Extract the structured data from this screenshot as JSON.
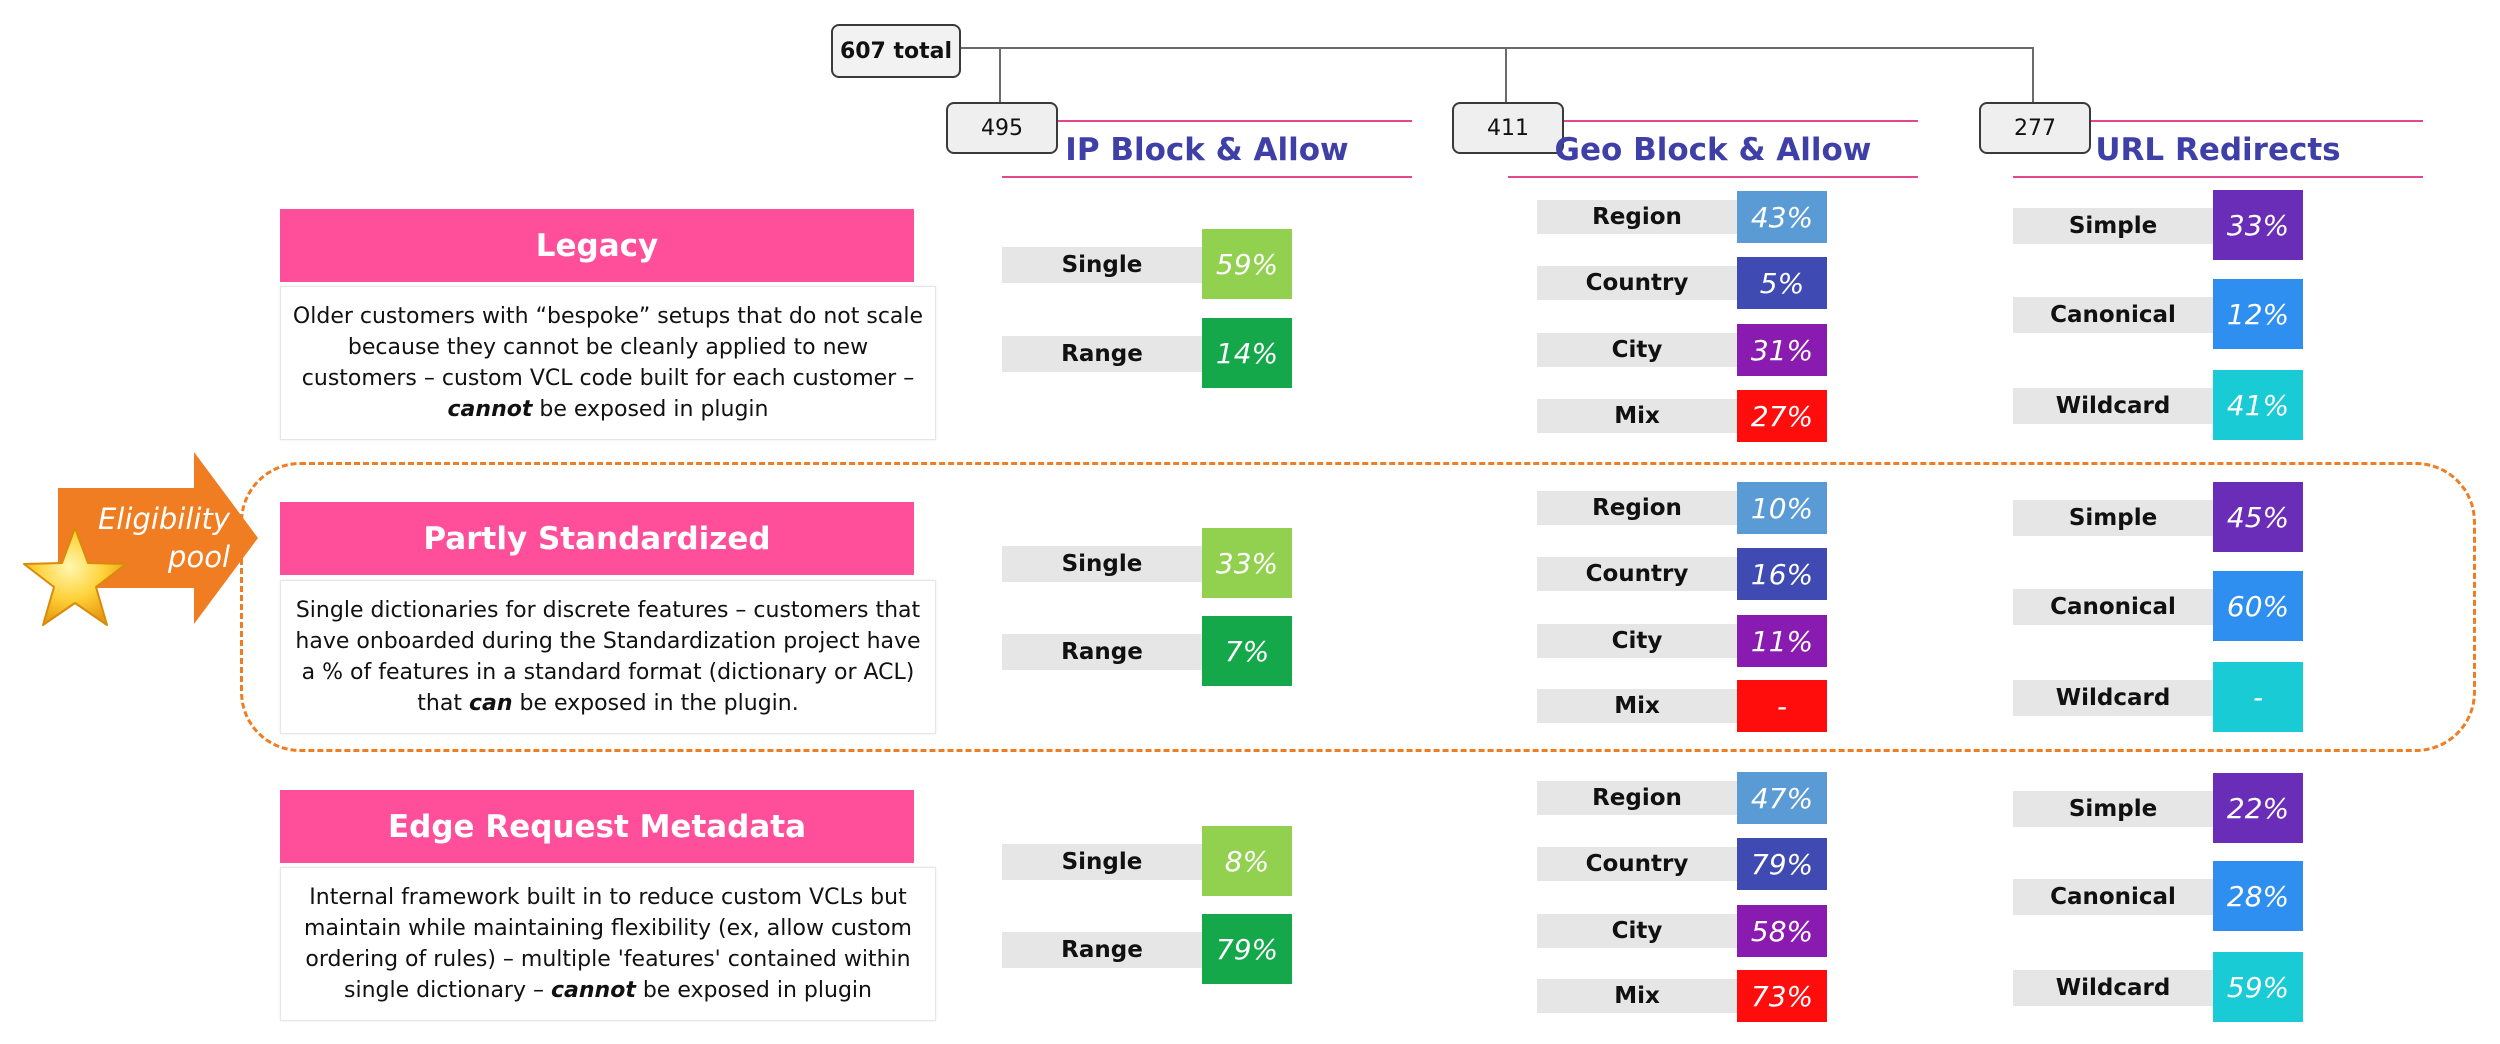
{
  "total": "607 total",
  "columns": [
    {
      "count": "495",
      "title": "IP Block & Allow"
    },
    {
      "count": "411",
      "title": "Geo Block & Allow"
    },
    {
      "count": "277",
      "title": "URL Redirects"
    }
  ],
  "eligibility": {
    "line1": "Eligibility",
    "line2": "pool"
  },
  "rows": [
    {
      "title": "Legacy",
      "desc_parts": [
        "Older customers with “bespoke” setups that do not scale because they cannot be cleanly applied to new customers – custom VCL code built for each customer – ",
        "cannot",
        " be exposed in plugin"
      ],
      "ip": [
        {
          "label": "Single",
          "value": "59%"
        },
        {
          "label": "Range",
          "value": "14%"
        }
      ],
      "geo": [
        {
          "label": "Region",
          "value": "43%"
        },
        {
          "label": "Country",
          "value": "5%"
        },
        {
          "label": "City",
          "value": "31%"
        },
        {
          "label": "Mix",
          "value": "27%"
        }
      ],
      "url": [
        {
          "label": "Simple",
          "value": "33%"
        },
        {
          "label": "Canonical",
          "value": "12%"
        },
        {
          "label": "Wildcard",
          "value": "41%"
        }
      ]
    },
    {
      "title": "Partly Standardized",
      "desc_parts": [
        "Single dictionaries for discrete features – customers that have onboarded during the Standardization project have a % of features in a standard format (dictionary or ACL) that ",
        "can",
        " be exposed in the plugin."
      ],
      "ip": [
        {
          "label": "Single",
          "value": "33%"
        },
        {
          "label": "Range",
          "value": "7%"
        }
      ],
      "geo": [
        {
          "label": "Region",
          "value": "10%"
        },
        {
          "label": "Country",
          "value": "16%"
        },
        {
          "label": "City",
          "value": "11%"
        },
        {
          "label": "Mix",
          "value": "-"
        }
      ],
      "url": [
        {
          "label": "Simple",
          "value": "45%"
        },
        {
          "label": "Canonical",
          "value": "60%"
        },
        {
          "label": "Wildcard",
          "value": "-"
        }
      ]
    },
    {
      "title": "Edge Request Metadata",
      "desc_parts": [
        "Internal framework built in to reduce custom VCLs but maintain while maintaining flexibility (ex, allow custom ordering of rules) – multiple 'features' contained within single dictionary – ",
        "cannot",
        " be exposed in plugin"
      ],
      "ip": [
        {
          "label": "Single",
          "value": "8%"
        },
        {
          "label": "Range",
          "value": "79%"
        }
      ],
      "geo": [
        {
          "label": "Region",
          "value": "47%"
        },
        {
          "label": "Country",
          "value": "79%"
        },
        {
          "label": "City",
          "value": "58%"
        },
        {
          "label": "Mix",
          "value": "73%"
        }
      ],
      "url": [
        {
          "label": "Simple",
          "value": "22%"
        },
        {
          "label": "Canonical",
          "value": "28%"
        },
        {
          "label": "Wildcard",
          "value": "59%"
        }
      ]
    }
  ],
  "colors": {
    "single": "#92d050",
    "range": "#14a84a",
    "region": "#5b9bd5",
    "country": "#3f4bb3",
    "city": "#8a1bb0",
    "mix": "#ff0d0d",
    "simple": "#6a2db8",
    "canonical": "#2e8ff0",
    "wildcard": "#19cbd4",
    "header": "#ff4f9b",
    "pool": "#f07d22"
  }
}
